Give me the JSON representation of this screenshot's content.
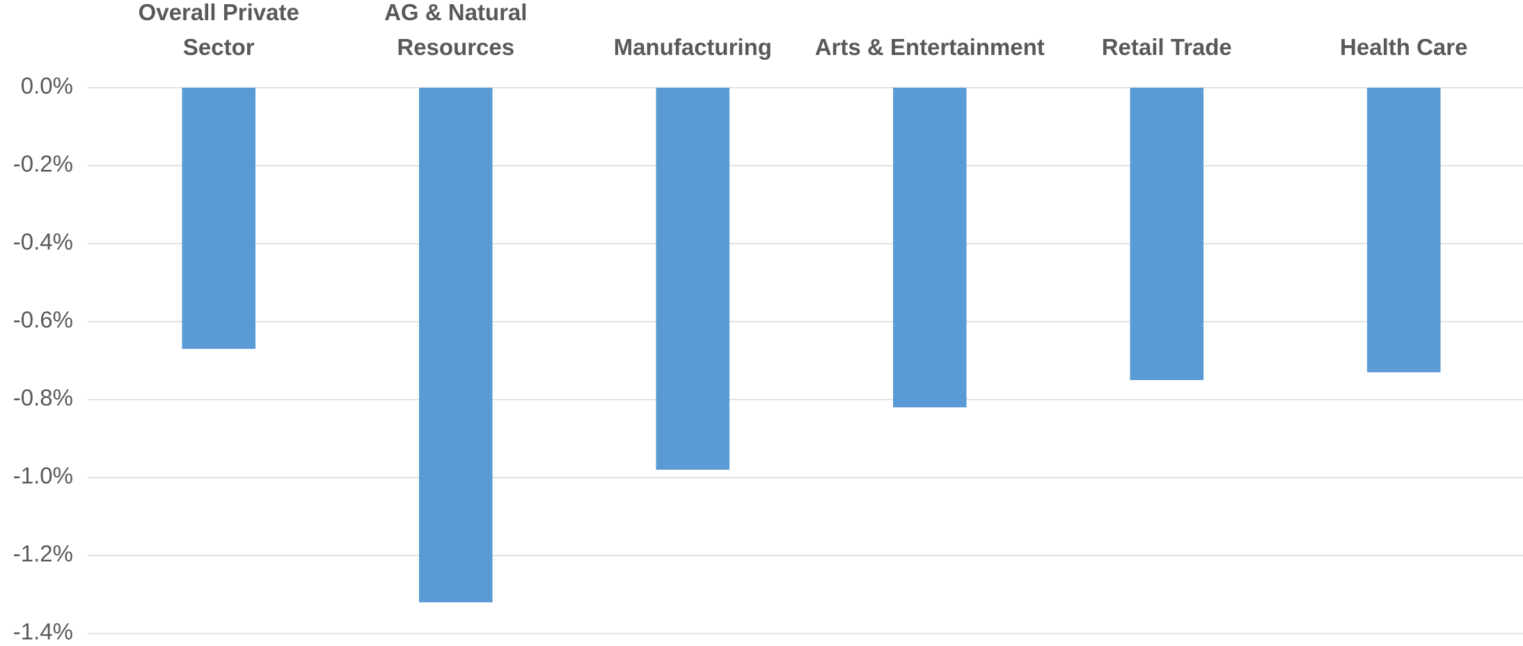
{
  "chart_data": {
    "type": "bar",
    "categories": [
      "Overall Private Sector",
      "AG & Natural Resources",
      "Manufacturing",
      "Arts & Entertainment",
      "Retail Trade",
      "Health Care"
    ],
    "values": [
      -0.67,
      -1.32,
      -0.98,
      -0.82,
      -0.75,
      -0.73
    ],
    "color": "#5b9bd5",
    "ylim": [
      -1.4,
      0
    ],
    "yticks": [
      {
        "value": 0,
        "label": "0.0%"
      },
      {
        "value": -0.2,
        "label": "-0.2%"
      },
      {
        "value": -0.4,
        "label": "-0.4%"
      },
      {
        "value": -0.6,
        "label": "-0.6%"
      },
      {
        "value": -0.8,
        "label": "-0.8%"
      },
      {
        "value": -1.0,
        "label": "-1.0%"
      },
      {
        "value": -1.2,
        "label": "-1.2%"
      },
      {
        "value": -1.4,
        "label": "-1.4%"
      }
    ],
    "grid": true
  }
}
